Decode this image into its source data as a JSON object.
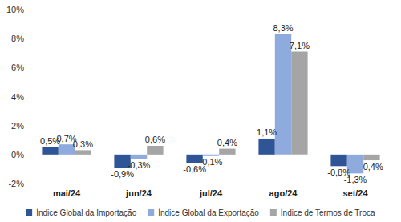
{
  "chart_data": {
    "type": "bar",
    "categories": [
      "mai/24",
      "jun/24",
      "jul/24",
      "ago/24",
      "set/24"
    ],
    "series": [
      {
        "name": "Índice Global da Importação",
        "color": "#2F5597",
        "values": [
          0.5,
          -0.9,
          -0.6,
          1.1,
          -0.8
        ],
        "value_labels": [
          "0,5%",
          "-0,9%",
          "-0,6%",
          "1,1%",
          "-0,8%"
        ]
      },
      {
        "name": "Índice Global da Exportação",
        "color": "#8FAADC",
        "values": [
          0.7,
          -0.3,
          -0.1,
          8.3,
          -1.3
        ],
        "value_labels": [
          "0,7%",
          "-0,3%",
          "-0,1%",
          "8,3%",
          "-1,3%"
        ]
      },
      {
        "name": "Índice de Termos de Troca",
        "color": "#A5A5A5",
        "values": [
          0.3,
          0.6,
          0.4,
          7.1,
          -0.4
        ],
        "value_labels": [
          "0,3%",
          "0,6%",
          "0,4%",
          "7,1%",
          "-0,4%"
        ]
      }
    ],
    "ylim": [
      -2,
      10
    ],
    "yticks": [
      {
        "value": -2,
        "label": "-2%"
      },
      {
        "value": 0,
        "label": "0%"
      },
      {
        "value": 2,
        "label": "2%"
      },
      {
        "value": 4,
        "label": "4%"
      },
      {
        "value": 6,
        "label": "6%"
      },
      {
        "value": 8,
        "label": "8%"
      },
      {
        "value": 10,
        "label": "10%"
      }
    ],
    "grid": false,
    "legend": "bottom",
    "data_labels": true
  }
}
